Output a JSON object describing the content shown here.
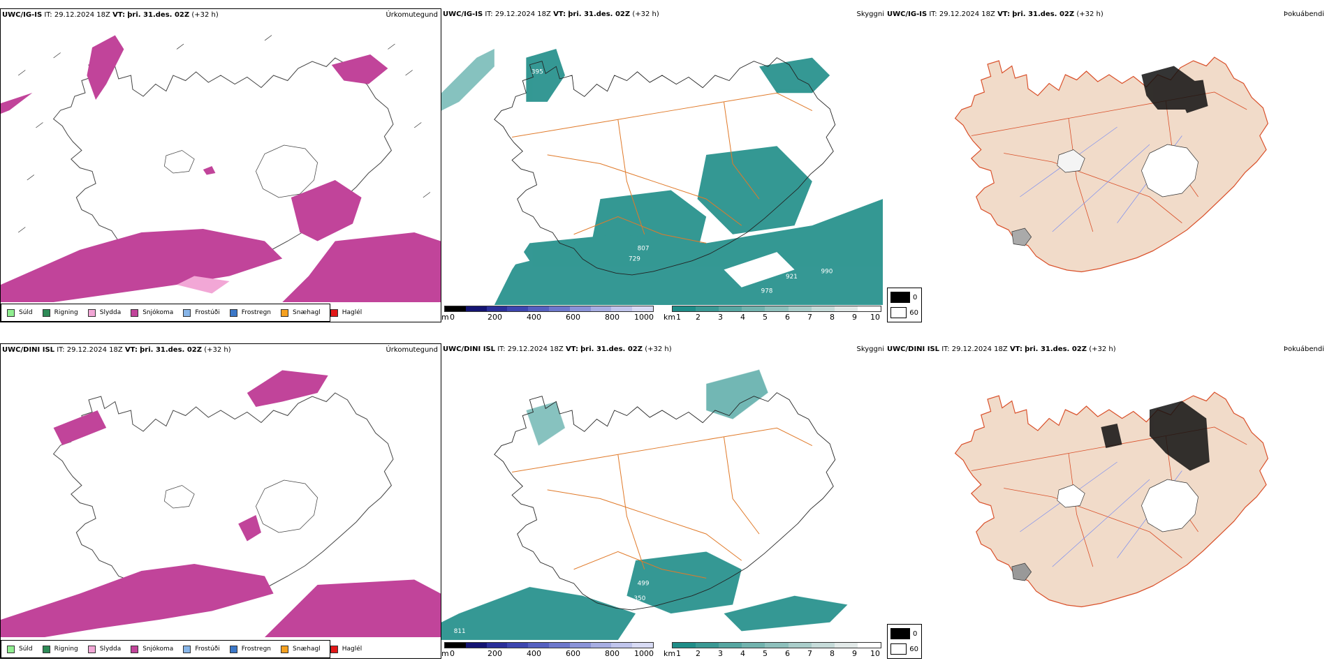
{
  "rows": [
    {
      "model": "UWC/IG-IS",
      "header": {
        "it_label": "IT:",
        "it_value": "29.12.2024 18Z",
        "vt_label": "VT:",
        "vt_value": "þri. 31.des. 02Z",
        "lead": "(+32 h)"
      },
      "numbers": [
        "395",
        "807",
        "729",
        "921",
        "990",
        "978"
      ]
    },
    {
      "model": "UWC/DINI ISL",
      "header": {
        "it_label": "IT:",
        "it_value": "29.12.2024 18Z",
        "vt_label": "VT:",
        "vt_value": "þri. 31.des. 02Z",
        "lead": "(+32 h)"
      },
      "numbers": [
        "499",
        "350",
        "811"
      ]
    }
  ],
  "panel_titles": {
    "precip": "Úrkomutegund",
    "visibility": "Skyggni",
    "fog": "Þokuábendi"
  },
  "precip_legend": [
    {
      "label": "Súld",
      "color": "#90ee90"
    },
    {
      "label": "Rigning",
      "color": "#2e8b57"
    },
    {
      "label": "Slydda",
      "color": "#f2a7d6"
    },
    {
      "label": "Snjókoma",
      "color": "#c1449a"
    },
    {
      "label": "Frostúði",
      "color": "#87b5e8"
    },
    {
      "label": "Frostregn",
      "color": "#3c78c8"
    },
    {
      "label": "Snæhagl",
      "color": "#f4a020"
    },
    {
      "label": "Haglél",
      "color": "#e21818"
    }
  ],
  "elevation_scale": {
    "unit": "m",
    "ticks": [
      "0",
      "200",
      "400",
      "600",
      "800",
      "1000"
    ]
  },
  "visibility_scale": {
    "unit": "km",
    "ticks": [
      "1",
      "2",
      "3",
      "4",
      "5",
      "6",
      "7",
      "8",
      "9",
      "10"
    ]
  },
  "fog_legend": {
    "max": "0",
    "min": "60"
  },
  "colors": {
    "snow": "#c1449a",
    "vis": "#1f8d88",
    "land": "#f1dbc9",
    "roads": "#e07a2a",
    "rivers": "#7a8df0"
  }
}
